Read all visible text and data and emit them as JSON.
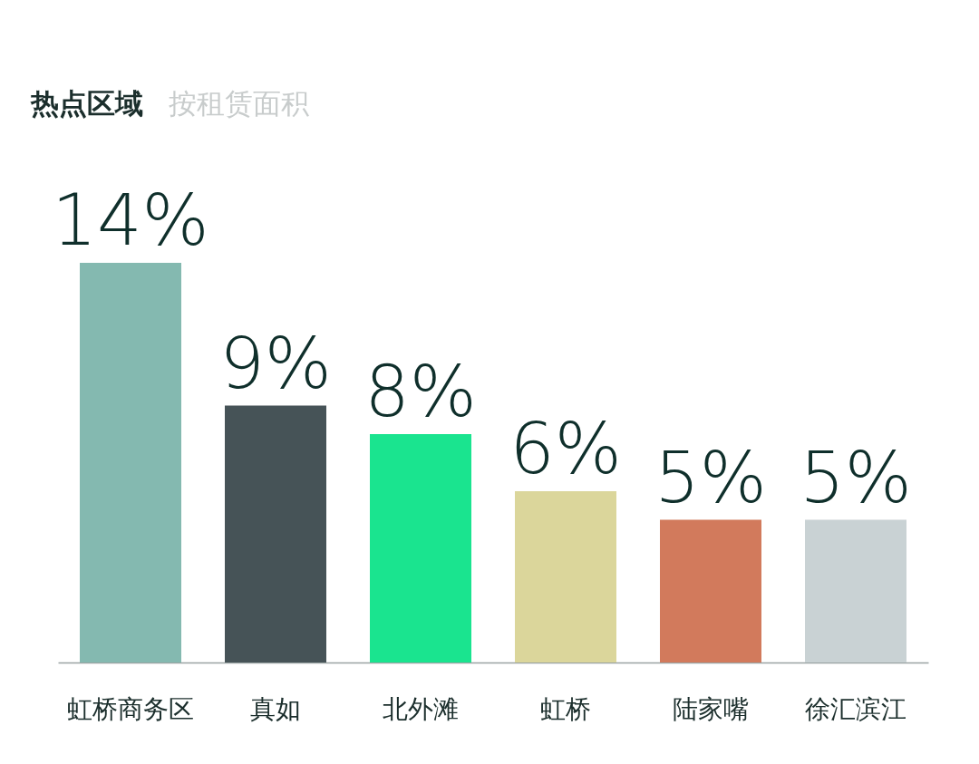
{
  "chart_data": {
    "type": "bar",
    "title": "热点区域",
    "subtitle": "按租赁面积",
    "categories": [
      "虹桥商务区",
      "真如",
      "北外滩",
      "虹桥",
      "陆家嘴",
      "徐汇滨江"
    ],
    "values": [
      14,
      9,
      8,
      6,
      5,
      5
    ],
    "value_labels": [
      "14%",
      "9%",
      "8%",
      "6%",
      "5%",
      "5%"
    ],
    "colors": [
      "#84b9b0",
      "#465357",
      "#1ae48f",
      "#dbd69b",
      "#d27a5c",
      "#c9d2d4"
    ]
  }
}
